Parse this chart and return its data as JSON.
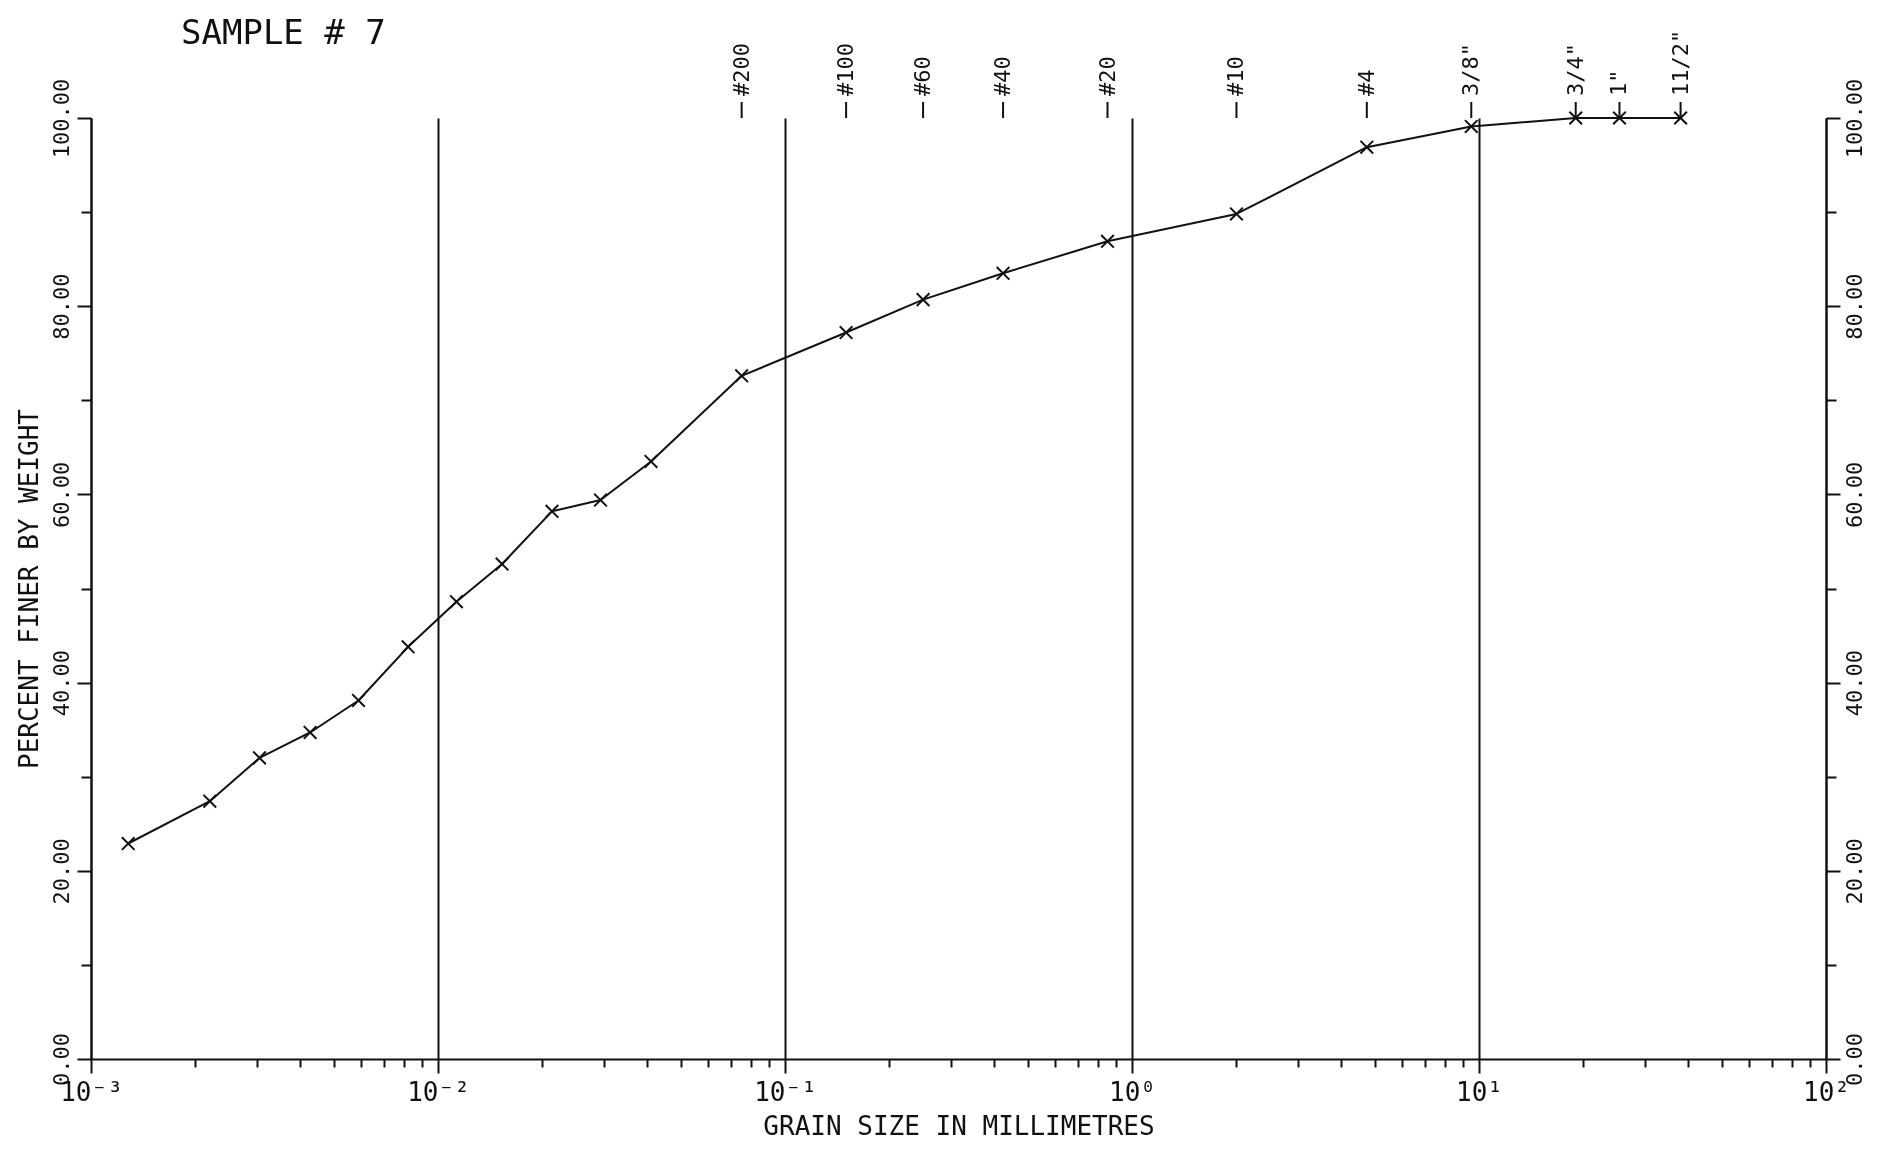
{
  "chart_data": {
    "type": "line",
    "title": "SAMPLE #   7",
    "xlabel": "GRAIN SIZE IN MILLIMETRES",
    "ylabel": "PERCENT FINER BY WEIGHT",
    "log": "x",
    "grid": "x",
    "marker": "cross",
    "line_style": "solid",
    "x": [
      0.00128,
      0.0022,
      0.00306,
      0.00428,
      0.0059,
      0.0082,
      0.0113,
      0.0153,
      0.0213,
      0.0294,
      0.0411,
      0.075,
      0.15,
      0.25,
      0.425,
      0.85,
      2.0,
      4.75,
      9.5,
      19.0,
      25.4,
      38.1
    ],
    "series": [
      {
        "color": "#111111",
        "values": [
          22.9,
          27.4,
          32.0,
          34.7,
          38.1,
          43.8,
          48.6,
          52.6,
          58.2,
          59.4,
          63.5,
          72.6,
          77.2,
          80.7,
          83.5,
          86.9,
          89.8,
          96.9,
          99.1,
          100,
          100,
          100
        ]
      }
    ],
    "xlim": [
      0.001,
      100
    ],
    "xticks": [
      {
        "value": 0.001,
        "label": "10⁻³"
      },
      {
        "value": 0.002,
        "label": null
      },
      {
        "value": 0.003,
        "label": null
      },
      {
        "value": 0.004,
        "label": null
      },
      {
        "value": 0.005,
        "label": null
      },
      {
        "value": 0.006,
        "label": null
      },
      {
        "value": 0.007,
        "label": null
      },
      {
        "value": 0.008,
        "label": null
      },
      {
        "value": 0.009,
        "label": null
      },
      {
        "value": 0.01,
        "label": "10⁻²"
      },
      {
        "value": 0.02,
        "label": null
      },
      {
        "value": 0.03,
        "label": null
      },
      {
        "value": 0.04,
        "label": null
      },
      {
        "value": 0.05,
        "label": null
      },
      {
        "value": 0.06,
        "label": null
      },
      {
        "value": 0.07,
        "label": null
      },
      {
        "value": 0.08,
        "label": null
      },
      {
        "value": 0.09,
        "label": null
      },
      {
        "value": 0.1,
        "label": "10⁻¹"
      },
      {
        "value": 0.2,
        "label": null
      },
      {
        "value": 0.3,
        "label": null
      },
      {
        "value": 0.4,
        "label": null
      },
      {
        "value": 0.5,
        "label": null
      },
      {
        "value": 0.6,
        "label": null
      },
      {
        "value": 0.7,
        "label": null
      },
      {
        "value": 0.8,
        "label": null
      },
      {
        "value": 0.9,
        "label": null
      },
      {
        "value": 1,
        "label": "10⁰"
      },
      {
        "value": 2,
        "label": null
      },
      {
        "value": 3,
        "label": null
      },
      {
        "value": 4,
        "label": null
      },
      {
        "value": 5,
        "label": null
      },
      {
        "value": 6,
        "label": null
      },
      {
        "value": 7,
        "label": null
      },
      {
        "value": 8,
        "label": null
      },
      {
        "value": 9,
        "label": null
      },
      {
        "value": 10,
        "label": "10¹"
      },
      {
        "value": 20,
        "label": null
      },
      {
        "value": 30,
        "label": null
      },
      {
        "value": 40,
        "label": null
      },
      {
        "value": 50,
        "label": null
      },
      {
        "value": 60,
        "label": null
      },
      {
        "value": 70,
        "label": null
      },
      {
        "value": 80,
        "label": null
      },
      {
        "value": 90,
        "label": null
      },
      {
        "value": 100,
        "label": "10²"
      }
    ],
    "annotations": [
      {
        "text": "#200",
        "x": 0.075
      },
      {
        "text": "#100",
        "x": 0.15
      },
      {
        "text": "#60",
        "x": 0.25
      },
      {
        "text": "#40",
        "x": 0.425
      },
      {
        "text": "#20",
        "x": 0.85
      },
      {
        "text": "#10",
        "x": 2.0
      },
      {
        "text": "#4",
        "x": 4.75
      },
      {
        "text": "3/8\"",
        "x": 9.5
      },
      {
        "text": "3/4\"",
        "x": 19.0
      },
      {
        "text": "1\"",
        "x": 25.4
      },
      {
        "text": "11/2\"",
        "x": 38.1
      }
    ],
    "ylim": [
      0,
      100
    ],
    "yticks": [
      {
        "value": 0,
        "label": "0.00"
      },
      {
        "value": 10,
        "label": null
      },
      {
        "value": 20,
        "label": "20.00"
      },
      {
        "value": 30,
        "label": null
      },
      {
        "value": 40,
        "label": "40.00"
      },
      {
        "value": 50,
        "label": null
      },
      {
        "value": 60,
        "label": "60.00"
      },
      {
        "value": 70,
        "label": null
      },
      {
        "value": 80,
        "label": "80.00"
      },
      {
        "value": 90,
        "label": null
      },
      {
        "value": 100,
        "label": "100.00"
      }
    ],
    "y2lim": [
      0,
      100
    ],
    "y2ticks": [
      {
        "value": 0,
        "label": "0.00"
      },
      {
        "value": 10,
        "label": null
      },
      {
        "value": 20,
        "label": "20.00"
      },
      {
        "value": 30,
        "label": null
      },
      {
        "value": 40,
        "label": "40.00"
      },
      {
        "value": 50,
        "label": null
      },
      {
        "value": 60,
        "label": "60.00"
      },
      {
        "value": 70,
        "label": null
      },
      {
        "value": 80,
        "label": "80.00"
      },
      {
        "value": 90,
        "label": null
      },
      {
        "value": 100,
        "label": "100.00"
      }
    ]
  }
}
